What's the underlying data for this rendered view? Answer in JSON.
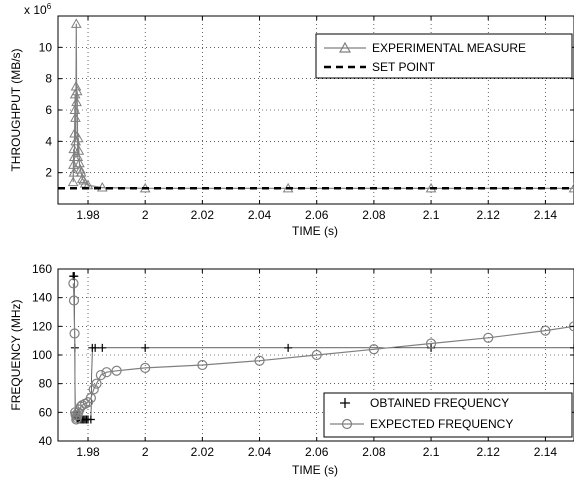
{
  "chart_data": [
    {
      "type": "line",
      "xlabel": "TIME (s)",
      "ylabel": "THROUGHPUT (MB/s)",
      "exponent_label": "x 10",
      "exponent_power": "6",
      "xlim": [
        1.9695,
        2.15
      ],
      "ylim": [
        0,
        1.2
      ],
      "x_ticks": [
        1.98,
        2.0,
        2.02,
        2.04,
        2.06,
        2.08,
        2.1,
        2.12,
        2.14
      ],
      "x_tick_labels": [
        "1.98",
        "2",
        "2.02",
        "2.04",
        "2.06",
        "2.08",
        "2.1",
        "2.12",
        "2.14"
      ],
      "y_ticks": [
        0.2,
        0.4,
        0.6,
        0.8,
        1.0
      ],
      "y_tick_labels": [
        "2",
        "4",
        "6",
        "8",
        "10"
      ],
      "grid": true,
      "legend_position": "top-right",
      "series": [
        {
          "name": "EXPERIMENTAL MEASURE",
          "color": "#808080",
          "marker": "triangle",
          "x": [
            1.9748,
            1.9749,
            1.975,
            1.9751,
            1.9752,
            1.9753,
            1.9754,
            1.9755,
            1.9756,
            1.9757,
            1.9758,
            1.9759,
            1.976,
            1.9762,
            1.9764,
            1.9766,
            1.9768,
            1.977,
            1.9773,
            1.9776,
            1.978,
            1.9785,
            1.979,
            1.98,
            1.985,
            2.0,
            2.05,
            2.1,
            2.15
          ],
          "y": [
            0.14,
            0.25,
            0.35,
            0.2,
            0.3,
            0.45,
            0.6,
            0.7,
            0.55,
            0.4,
            0.75,
            1.15,
            0.65,
            0.72,
            0.3,
            0.42,
            0.34,
            0.26,
            0.22,
            0.2,
            0.16,
            0.15,
            0.13,
            0.12,
            0.105,
            0.1,
            0.1,
            0.1,
            0.1
          ]
        },
        {
          "name": "SET POINT",
          "color": "#000000",
          "style": "dashed",
          "x": [
            1.9695,
            2.15
          ],
          "y": [
            0.1,
            0.1
          ]
        }
      ]
    },
    {
      "type": "line",
      "xlabel": "TIME (s)",
      "ylabel": "FREQUENCY (MHz)",
      "xlim": [
        1.9695,
        2.15
      ],
      "ylim": [
        40,
        160
      ],
      "x_ticks": [
        1.98,
        2.0,
        2.02,
        2.04,
        2.06,
        2.08,
        2.1,
        2.12,
        2.14
      ],
      "x_tick_labels": [
        "1.98",
        "2",
        "2.02",
        "2.04",
        "2.06",
        "2.08",
        "2.1",
        "2.12",
        "2.14"
      ],
      "y_ticks": [
        40,
        60,
        80,
        100,
        120,
        140,
        160
      ],
      "y_tick_labels": [
        "40",
        "60",
        "80",
        "100",
        "120",
        "140",
        "160"
      ],
      "grid": true,
      "legend_position": "bottom-right",
      "series": [
        {
          "name": "OBTAINED FREQUENCY",
          "color": "#000000",
          "marker": "plus",
          "x": [
            1.9748,
            1.975,
            1.9752,
            1.9754,
            1.9756,
            1.9758,
            1.976,
            1.9762,
            1.9764,
            1.9766,
            1.977,
            1.9775,
            1.978,
            1.9785,
            1.979,
            1.9795,
            1.98,
            1.981,
            1.9815,
            1.9825,
            1.985,
            2.0,
            2.05,
            2.1,
            2.15
          ],
          "y": [
            155,
            155,
            155,
            105,
            60,
            58,
            57,
            56,
            55,
            55,
            55,
            55,
            55,
            55,
            55,
            55,
            55,
            55,
            105,
            105,
            105,
            105,
            105,
            105,
            105
          ]
        },
        {
          "name": "EXPECTED FREQUENCY",
          "color": "#808080",
          "marker": "circle",
          "x": [
            1.9749,
            1.9751,
            1.9753,
            1.9755,
            1.9757,
            1.9759,
            1.9761,
            1.9763,
            1.9766,
            1.977,
            1.9775,
            1.978,
            1.979,
            1.98,
            1.981,
            1.982,
            1.983,
            1.9845,
            1.9865,
            1.99,
            2.0,
            2.02,
            2.04,
            2.06,
            2.08,
            2.1,
            2.12,
            2.14,
            2.15
          ],
          "y": [
            150,
            138,
            115,
            60,
            58,
            55,
            56,
            58,
            60,
            62,
            64,
            65,
            66,
            67,
            70,
            76,
            80,
            86,
            88,
            89,
            91,
            93,
            96,
            100,
            104,
            108,
            112,
            117,
            120
          ]
        }
      ]
    }
  ]
}
